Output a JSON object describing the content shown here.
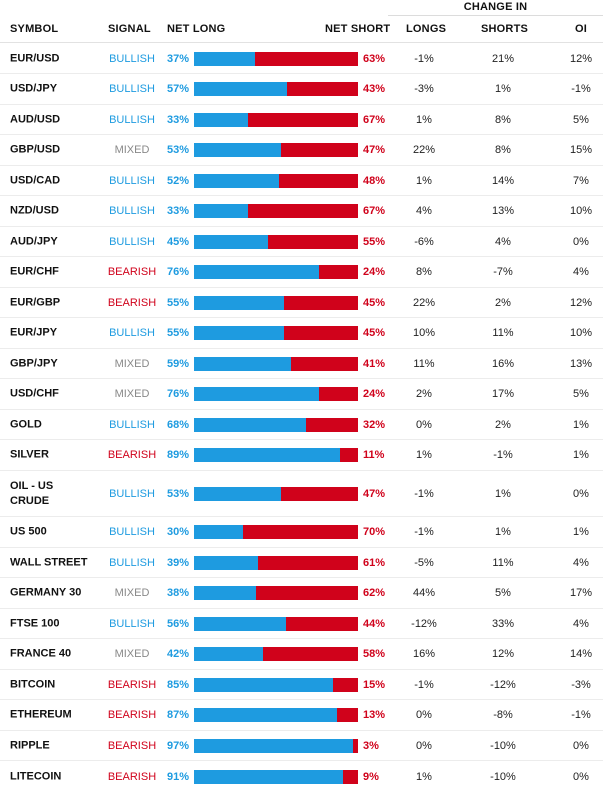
{
  "header": {
    "change_in": "CHANGE IN",
    "symbol": "SYMBOL",
    "signal": "SIGNAL",
    "net_long": "NET LONG",
    "net_short": "NET SHORT",
    "longs": "LONGS",
    "shorts": "SHORTS",
    "oi": "OI"
  },
  "colors": {
    "bullish": "#1e9be0",
    "bearish": "#d0021b",
    "mixed": "#888888",
    "long_bar": "#1e9be0",
    "short_bar": "#d0021b"
  },
  "rows": [
    {
      "symbol": "EUR/USD",
      "signal": "BULLISH",
      "net_long": "37%",
      "net_long_value": 37,
      "net_short": "63%",
      "longs": "-1%",
      "shorts": "21%",
      "oi": "12%"
    },
    {
      "symbol": "USD/JPY",
      "signal": "BULLISH",
      "net_long": "57%",
      "net_long_value": 57,
      "net_short": "43%",
      "longs": "-3%",
      "shorts": "1%",
      "oi": "-1%"
    },
    {
      "symbol": "AUD/USD",
      "signal": "BULLISH",
      "net_long": "33%",
      "net_long_value": 33,
      "net_short": "67%",
      "longs": "1%",
      "shorts": "8%",
      "oi": "5%"
    },
    {
      "symbol": "GBP/USD",
      "signal": "MIXED",
      "net_long": "53%",
      "net_long_value": 53,
      "net_short": "47%",
      "longs": "22%",
      "shorts": "8%",
      "oi": "15%"
    },
    {
      "symbol": "USD/CAD",
      "signal": "BULLISH",
      "net_long": "52%",
      "net_long_value": 52,
      "net_short": "48%",
      "longs": "1%",
      "shorts": "14%",
      "oi": "7%"
    },
    {
      "symbol": "NZD/USD",
      "signal": "BULLISH",
      "net_long": "33%",
      "net_long_value": 33,
      "net_short": "67%",
      "longs": "4%",
      "shorts": "13%",
      "oi": "10%"
    },
    {
      "symbol": "AUD/JPY",
      "signal": "BULLISH",
      "net_long": "45%",
      "net_long_value": 45,
      "net_short": "55%",
      "longs": "-6%",
      "shorts": "4%",
      "oi": "0%"
    },
    {
      "symbol": "EUR/CHF",
      "signal": "BEARISH",
      "net_long": "76%",
      "net_long_value": 76,
      "net_short": "24%",
      "longs": "8%",
      "shorts": "-7%",
      "oi": "4%"
    },
    {
      "symbol": "EUR/GBP",
      "signal": "BEARISH",
      "net_long": "55%",
      "net_long_value": 55,
      "net_short": "45%",
      "longs": "22%",
      "shorts": "2%",
      "oi": "12%"
    },
    {
      "symbol": "EUR/JPY",
      "signal": "BULLISH",
      "net_long": "55%",
      "net_long_value": 55,
      "net_short": "45%",
      "longs": "10%",
      "shorts": "11%",
      "oi": "10%"
    },
    {
      "symbol": "GBP/JPY",
      "signal": "MIXED",
      "net_long": "59%",
      "net_long_value": 59,
      "net_short": "41%",
      "longs": "11%",
      "shorts": "16%",
      "oi": "13%"
    },
    {
      "symbol": "USD/CHF",
      "signal": "MIXED",
      "net_long": "76%",
      "net_long_value": 76,
      "net_short": "24%",
      "longs": "2%",
      "shorts": "17%",
      "oi": "5%"
    },
    {
      "symbol": "GOLD",
      "signal": "BULLISH",
      "net_long": "68%",
      "net_long_value": 68,
      "net_short": "32%",
      "longs": "0%",
      "shorts": "2%",
      "oi": "1%"
    },
    {
      "symbol": "SILVER",
      "signal": "BEARISH",
      "net_long": "89%",
      "net_long_value": 89,
      "net_short": "11%",
      "longs": "1%",
      "shorts": "-1%",
      "oi": "1%"
    },
    {
      "symbol": "OIL - US CRUDE",
      "signal": "BULLISH",
      "net_long": "53%",
      "net_long_value": 53,
      "net_short": "47%",
      "longs": "-1%",
      "shorts": "1%",
      "oi": "0%"
    },
    {
      "symbol": "US 500",
      "signal": "BULLISH",
      "net_long": "30%",
      "net_long_value": 30,
      "net_short": "70%",
      "longs": "-1%",
      "shorts": "1%",
      "oi": "1%"
    },
    {
      "symbol": "WALL STREET",
      "signal": "BULLISH",
      "net_long": "39%",
      "net_long_value": 39,
      "net_short": "61%",
      "longs": "-5%",
      "shorts": "11%",
      "oi": "4%"
    },
    {
      "symbol": "GERMANY 30",
      "signal": "MIXED",
      "net_long": "38%",
      "net_long_value": 38,
      "net_short": "62%",
      "longs": "44%",
      "shorts": "5%",
      "oi": "17%"
    },
    {
      "symbol": "FTSE 100",
      "signal": "BULLISH",
      "net_long": "56%",
      "net_long_value": 56,
      "net_short": "44%",
      "longs": "-12%",
      "shorts": "33%",
      "oi": "4%"
    },
    {
      "symbol": "FRANCE 40",
      "signal": "MIXED",
      "net_long": "42%",
      "net_long_value": 42,
      "net_short": "58%",
      "longs": "16%",
      "shorts": "12%",
      "oi": "14%"
    },
    {
      "symbol": "BITCOIN",
      "signal": "BEARISH",
      "net_long": "85%",
      "net_long_value": 85,
      "net_short": "15%",
      "longs": "-1%",
      "shorts": "-12%",
      "oi": "-3%"
    },
    {
      "symbol": "ETHEREUM",
      "signal": "BEARISH",
      "net_long": "87%",
      "net_long_value": 87,
      "net_short": "13%",
      "longs": "0%",
      "shorts": "-8%",
      "oi": "-1%"
    },
    {
      "symbol": "RIPPLE",
      "signal": "BEARISH",
      "net_long": "97%",
      "net_long_value": 97,
      "net_short": "3%",
      "longs": "0%",
      "shorts": "-10%",
      "oi": "0%"
    },
    {
      "symbol": "LITECOIN",
      "signal": "BEARISH",
      "net_long": "91%",
      "net_long_value": 91,
      "net_short": "9%",
      "longs": "1%",
      "shorts": "-10%",
      "oi": "0%"
    }
  ]
}
